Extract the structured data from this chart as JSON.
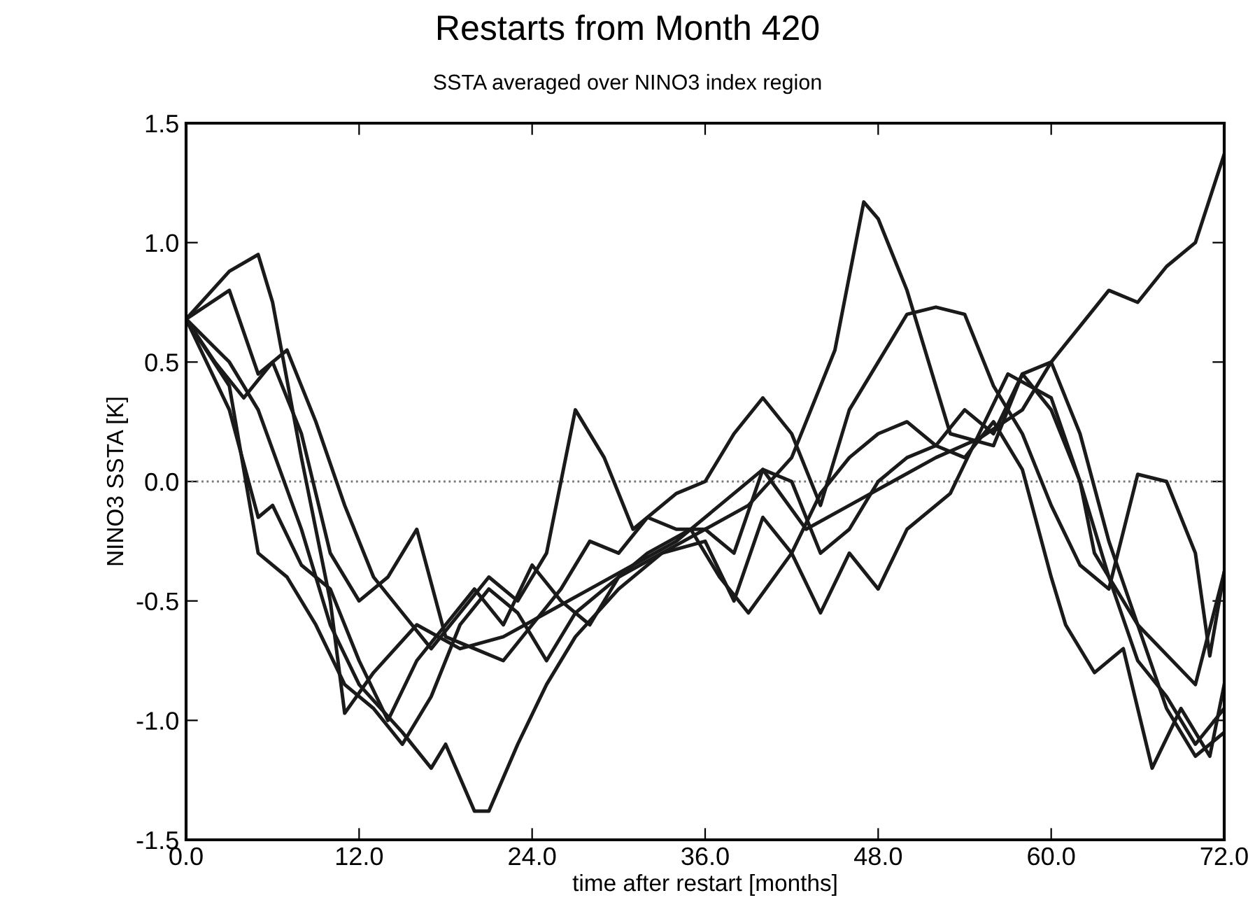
{
  "chart_data": {
    "type": "line",
    "title": "Restarts from Month 420",
    "subtitle": "SSTA averaged over NINO3 index region",
    "xlabel": "time after restart [months]",
    "ylabel": "NINO3 SSTA [K]",
    "xlim": [
      0,
      72
    ],
    "ylim": [
      -1.5,
      1.5
    ],
    "xticks": [
      {
        "value": 0,
        "label": "0.0"
      },
      {
        "value": 12,
        "label": "12.0"
      },
      {
        "value": 24,
        "label": "24.0"
      },
      {
        "value": 36,
        "label": "36.0"
      },
      {
        "value": 48,
        "label": "48.0"
      },
      {
        "value": 60,
        "label": "60.0"
      },
      {
        "value": 72,
        "label": "72.0"
      }
    ],
    "yticks": [
      {
        "value": -1.5,
        "label": "-1.5"
      },
      {
        "value": -1.0,
        "label": "-1.0"
      },
      {
        "value": -0.5,
        "label": "-0.5"
      },
      {
        "value": 0,
        "label": "0.0"
      },
      {
        "value": 0.5,
        "label": "0.5"
      },
      {
        "value": 1.0,
        "label": "1.0"
      },
      {
        "value": 1.5,
        "label": "1.5"
      }
    ],
    "grid": false,
    "legend": false,
    "marker": "none",
    "line_style": "solid",
    "ref_lines": [
      {
        "axis": "y",
        "value": 0,
        "color": "#777777",
        "line_style": "dotted"
      }
    ],
    "series": [
      {
        "color": "#1a1a1a",
        "x": [
          0,
          3,
          5,
          6,
          8,
          10,
          11,
          13,
          16,
          19,
          22,
          25,
          28,
          31,
          34,
          37,
          40,
          43,
          46,
          49,
          52,
          55,
          58,
          60,
          62,
          64,
          66,
          68,
          70,
          72
        ],
        "values": [
          0.68,
          0.88,
          0.95,
          0.75,
          0.1,
          -0.5,
          -0.97,
          -0.8,
          -0.6,
          -0.7,
          -0.65,
          -0.55,
          -0.45,
          -0.35,
          -0.25,
          -0.1,
          0.05,
          -0.2,
          -0.1,
          0.0,
          0.1,
          0.18,
          0.3,
          0.5,
          0.65,
          0.8,
          0.75,
          0.9,
          1.0,
          1.37
        ]
      },
      {
        "color": "#1a1a1a",
        "x": [
          0,
          3,
          5,
          8,
          10,
          12,
          15,
          17,
          18,
          20,
          21,
          23,
          25,
          27,
          30,
          33,
          36,
          39,
          42,
          45,
          47,
          48,
          50,
          53,
          56,
          58,
          60,
          62,
          63,
          66,
          70,
          72
        ],
        "values": [
          0.68,
          0.5,
          0.3,
          -0.2,
          -0.6,
          -0.85,
          -1.05,
          -1.2,
          -1.1,
          -1.38,
          -1.38,
          -1.1,
          -0.85,
          -0.65,
          -0.45,
          -0.3,
          -0.2,
          -0.1,
          0.1,
          0.55,
          1.17,
          1.1,
          0.8,
          0.2,
          0.15,
          0.45,
          0.3,
          0.0,
          -0.3,
          -0.6,
          -0.85,
          -0.38
        ]
      },
      {
        "color": "#1a1a1a",
        "x": [
          0,
          3,
          5,
          7,
          9,
          11,
          13,
          15,
          17,
          19,
          21,
          23,
          25,
          27,
          29,
          31,
          34,
          36,
          38,
          40,
          42,
          44,
          46,
          48,
          50,
          52,
          54,
          56,
          58,
          60,
          62,
          64,
          66,
          68,
          70,
          71,
          72
        ],
        "values": [
          0.68,
          0.8,
          0.45,
          0.55,
          0.25,
          -0.1,
          -0.4,
          -0.55,
          -0.7,
          -0.55,
          -0.4,
          -0.5,
          -0.3,
          0.3,
          0.1,
          -0.2,
          -0.05,
          0.0,
          0.2,
          0.35,
          0.2,
          -0.1,
          0.3,
          0.5,
          0.7,
          0.73,
          0.7,
          0.4,
          0.2,
          -0.1,
          -0.35,
          -0.45,
          0.03,
          0.0,
          -0.3,
          -0.73,
          -0.38
        ]
      },
      {
        "color": "#1a1a1a",
        "x": [
          0,
          3,
          5,
          6,
          8,
          10,
          12,
          14,
          16,
          18,
          20,
          22,
          24,
          26,
          28,
          30,
          33,
          36,
          38,
          40,
          42,
          44,
          46,
          48,
          50,
          53,
          55,
          57,
          60,
          62,
          64,
          66,
          68,
          70,
          72
        ],
        "values": [
          0.68,
          0.3,
          -0.15,
          -0.1,
          -0.35,
          -0.45,
          -0.75,
          -1.0,
          -0.75,
          -0.6,
          -0.45,
          -0.6,
          -0.35,
          -0.5,
          -0.6,
          -0.4,
          -0.3,
          -0.25,
          -0.5,
          -0.15,
          -0.3,
          -0.55,
          -0.3,
          -0.45,
          -0.2,
          -0.05,
          0.2,
          0.45,
          0.35,
          0.0,
          -0.4,
          -0.75,
          -0.9,
          -1.1,
          -0.95
        ]
      },
      {
        "color": "#1a1a1a",
        "x": [
          0,
          2,
          4,
          6,
          8,
          10,
          12,
          14,
          16,
          18,
          20,
          22,
          24,
          26,
          28,
          30,
          32,
          34,
          36,
          38,
          40,
          42,
          44,
          46,
          48,
          50,
          52,
          54,
          56,
          58,
          60,
          62,
          64,
          66,
          68,
          70,
          72
        ],
        "values": [
          0.68,
          0.5,
          0.35,
          0.5,
          0.2,
          -0.3,
          -0.5,
          -0.4,
          -0.2,
          -0.65,
          -0.7,
          -0.75,
          -0.6,
          -0.45,
          -0.25,
          -0.3,
          -0.15,
          -0.2,
          -0.2,
          -0.3,
          0.05,
          0.0,
          -0.3,
          -0.2,
          0.0,
          0.1,
          0.15,
          0.3,
          0.2,
          0.45,
          0.5,
          0.2,
          -0.25,
          -0.6,
          -0.95,
          -1.15,
          -1.05
        ]
      },
      {
        "color": "#1a1a1a",
        "x": [
          0,
          3,
          5,
          7,
          9,
          11,
          13,
          15,
          17,
          19,
          21,
          23,
          25,
          27,
          29,
          32,
          35,
          37,
          39,
          42,
          44,
          46,
          48,
          50,
          52,
          54,
          56,
          58,
          60,
          61,
          63,
          65,
          67,
          69,
          71,
          72
        ],
        "values": [
          0.68,
          0.4,
          -0.3,
          -0.4,
          -0.6,
          -0.85,
          -0.95,
          -1.1,
          -0.9,
          -0.6,
          -0.45,
          -0.55,
          -0.75,
          -0.55,
          -0.45,
          -0.3,
          -0.2,
          -0.4,
          -0.55,
          -0.3,
          -0.05,
          0.1,
          0.2,
          0.25,
          0.15,
          0.1,
          0.25,
          0.05,
          -0.4,
          -0.6,
          -0.8,
          -0.7,
          -1.2,
          -0.95,
          -1.15,
          -0.85
        ]
      }
    ]
  }
}
